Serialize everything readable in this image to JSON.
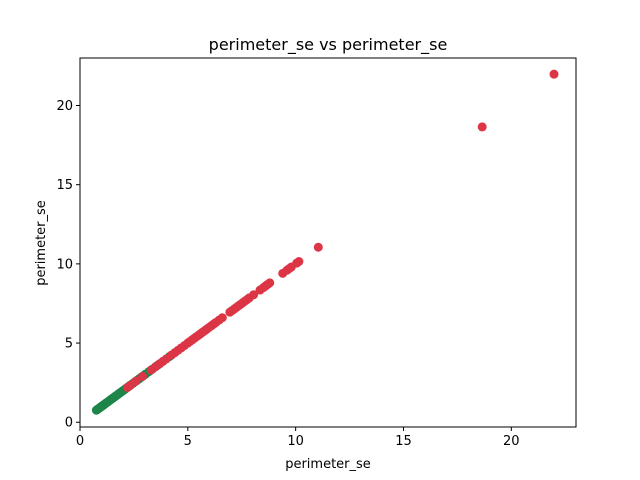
{
  "chart_data": {
    "type": "scatter",
    "title": "perimeter_se vs perimeter_se",
    "xlabel": "perimeter_se",
    "ylabel": "perimeter_se",
    "xlim": [
      0,
      23
    ],
    "ylim": [
      -0.3,
      23
    ],
    "xticks": [
      0,
      5,
      10,
      15,
      20
    ],
    "yticks": [
      0,
      5,
      10,
      15,
      20
    ],
    "grid": false,
    "series": [
      {
        "color": "#1e8449",
        "points": [
          0.76,
          0.8,
          0.84,
          0.88,
          0.92,
          0.96,
          1.0,
          1.04,
          1.08,
          1.12,
          1.16,
          1.2,
          1.25,
          1.3,
          1.35,
          1.4,
          1.45,
          1.5,
          1.55,
          1.6,
          1.66,
          1.72,
          1.78,
          1.84,
          1.9,
          1.96,
          2.02,
          2.1,
          2.18,
          2.26,
          2.34,
          2.45,
          2.55,
          2.65,
          2.75,
          2.85,
          2.95,
          3.05,
          3.2,
          3.35,
          3.6,
          4.15
        ]
      },
      {
        "color": "#dc3545",
        "points": [
          2.2,
          2.35,
          2.6,
          2.9,
          3.3,
          3.5,
          3.7,
          3.85,
          4.0,
          4.25,
          4.4,
          4.55,
          4.7,
          4.85,
          5.0,
          5.1,
          5.2,
          5.3,
          5.4,
          5.5,
          5.6,
          5.7,
          5.8,
          5.9,
          6.0,
          6.1,
          6.2,
          6.3,
          6.45,
          6.6,
          6.95,
          7.05,
          7.15,
          7.25,
          7.35,
          7.45,
          7.55,
          7.65,
          7.75,
          7.85,
          8.05,
          8.35,
          8.5,
          8.6,
          8.7,
          8.8,
          9.4,
          9.6,
          9.7,
          9.8,
          10.05,
          10.15,
          11.05,
          18.65,
          21.98
        ]
      }
    ]
  }
}
